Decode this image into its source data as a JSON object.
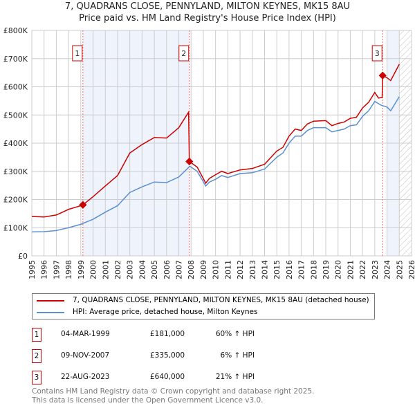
{
  "title_line1": "7, QUADRANS CLOSE, PENNYLAND, MILTON KEYNES, MK15 8AU",
  "title_line2": "Price paid vs. HM Land Registry's House Price Index (HPI)",
  "chart_data": {
    "type": "line",
    "xlim": [
      1995,
      2026
    ],
    "ylim": [
      0,
      800000
    ],
    "x_ticks": [
      "1995",
      "1996",
      "1997",
      "1998",
      "1999",
      "2000",
      "2001",
      "2002",
      "2003",
      "2004",
      "2005",
      "2006",
      "2007",
      "2008",
      "2009",
      "2010",
      "2011",
      "2012",
      "2013",
      "2014",
      "2015",
      "2016",
      "2017",
      "2018",
      "2019",
      "2020",
      "2021",
      "2022",
      "2023",
      "2024",
      "2025",
      "2026"
    ],
    "y_ticks": [
      {
        "v": 0,
        "label": "£0"
      },
      {
        "v": 100000,
        "label": "£100K"
      },
      {
        "v": 200000,
        "label": "£200K"
      },
      {
        "v": 300000,
        "label": "£300K"
      },
      {
        "v": 400000,
        "label": "£400K"
      },
      {
        "v": 500000,
        "label": "£500K"
      },
      {
        "v": 600000,
        "label": "£600K"
      },
      {
        "v": 700000,
        "label": "£700K"
      },
      {
        "v": 800000,
        "label": "£800K"
      }
    ],
    "grid": true,
    "shaded_ranges": [
      [
        1999.17,
        2007.86
      ],
      [
        2024.0,
        2025.0
      ]
    ],
    "hatched_from": 2025.0,
    "series": [
      {
        "name": "7, QUADRANS CLOSE, PENNYLAND, MILTON KEYNES, MK15 8AU (detached house)",
        "color": "#cc0000",
        "x": [
          1995,
          1996,
          1997,
          1998,
          1999,
          1999.17,
          2000,
          2001,
          2002,
          2003,
          2004,
          2005,
          2006,
          2007,
          2007.8,
          2007.86,
          2008.5,
          2009.2,
          2009.5,
          2010,
          2010.5,
          2011,
          2012,
          2013,
          2014,
          2015,
          2015.5,
          2016,
          2016.5,
          2017,
          2017.5,
          2018,
          2019,
          2019.5,
          2020,
          2020.5,
          2021,
          2021.5,
          2022,
          2022.5,
          2023,
          2023.3,
          2023.6,
          2023.64,
          2024,
          2024.3,
          2025
        ],
        "y": [
          140000,
          138000,
          145000,
          165000,
          178000,
          181000,
          210000,
          248000,
          285000,
          365000,
          395000,
          420000,
          418000,
          455000,
          510000,
          335000,
          315000,
          258000,
          275000,
          288000,
          300000,
          292000,
          305000,
          310000,
          325000,
          372000,
          385000,
          425000,
          450000,
          445000,
          468000,
          478000,
          480000,
          462000,
          470000,
          475000,
          488000,
          492000,
          525000,
          545000,
          580000,
          560000,
          562000,
          640000,
          632000,
          622000,
          680000
        ]
      },
      {
        "name": "HPI: Average price, detached house, Milton Keynes",
        "color": "#5b8fd0",
        "x": [
          1995,
          1996,
          1997,
          1998,
          1999,
          2000,
          2001,
          2002,
          2003,
          2004,
          2005,
          2006,
          2007,
          2007.9,
          2008.5,
          2009.2,
          2009.5,
          2010,
          2010.5,
          2011,
          2012,
          2013,
          2014,
          2015,
          2015.5,
          2016,
          2016.5,
          2017,
          2017.5,
          2018,
          2019,
          2019.5,
          2020,
          2020.5,
          2021,
          2021.5,
          2022,
          2022.5,
          2023,
          2023.5,
          2024,
          2024.3,
          2025
        ],
        "y": [
          85000,
          86000,
          90000,
          100000,
          112000,
          130000,
          155000,
          178000,
          225000,
          245000,
          262000,
          260000,
          280000,
          318000,
          300000,
          248000,
          262000,
          272000,
          285000,
          278000,
          292000,
          295000,
          308000,
          350000,
          365000,
          400000,
          425000,
          425000,
          445000,
          455000,
          455000,
          440000,
          445000,
          450000,
          462000,
          465000,
          495000,
          515000,
          548000,
          535000,
          528000,
          515000,
          565000
        ]
      }
    ],
    "sales": [
      {
        "id": "1",
        "x": 1999.17,
        "y": 181000,
        "date": "04-MAR-1999",
        "price": "£181,000",
        "hpi": "60% ↑ HPI"
      },
      {
        "id": "2",
        "x": 2007.86,
        "y": 335000,
        "date": "09-NOV-2007",
        "price": "£335,000",
        "hpi": "6% ↑ HPI"
      },
      {
        "id": "3",
        "x": 2023.64,
        "y": 640000,
        "date": "22-AUG-2023",
        "price": "£640,000",
        "hpi": "21% ↑ HPI"
      }
    ]
  },
  "legend": {
    "red": "7, QUADRANS CLOSE, PENNYLAND, MILTON KEYNES, MK15 8AU (detached house)",
    "blue": "HPI: Average price, detached house, Milton Keynes"
  },
  "footer": {
    "line1": "Contains HM Land Registry data © Crown copyright and database right 2025.",
    "line2": "This data is licensed under the Open Government Licence v3.0."
  }
}
